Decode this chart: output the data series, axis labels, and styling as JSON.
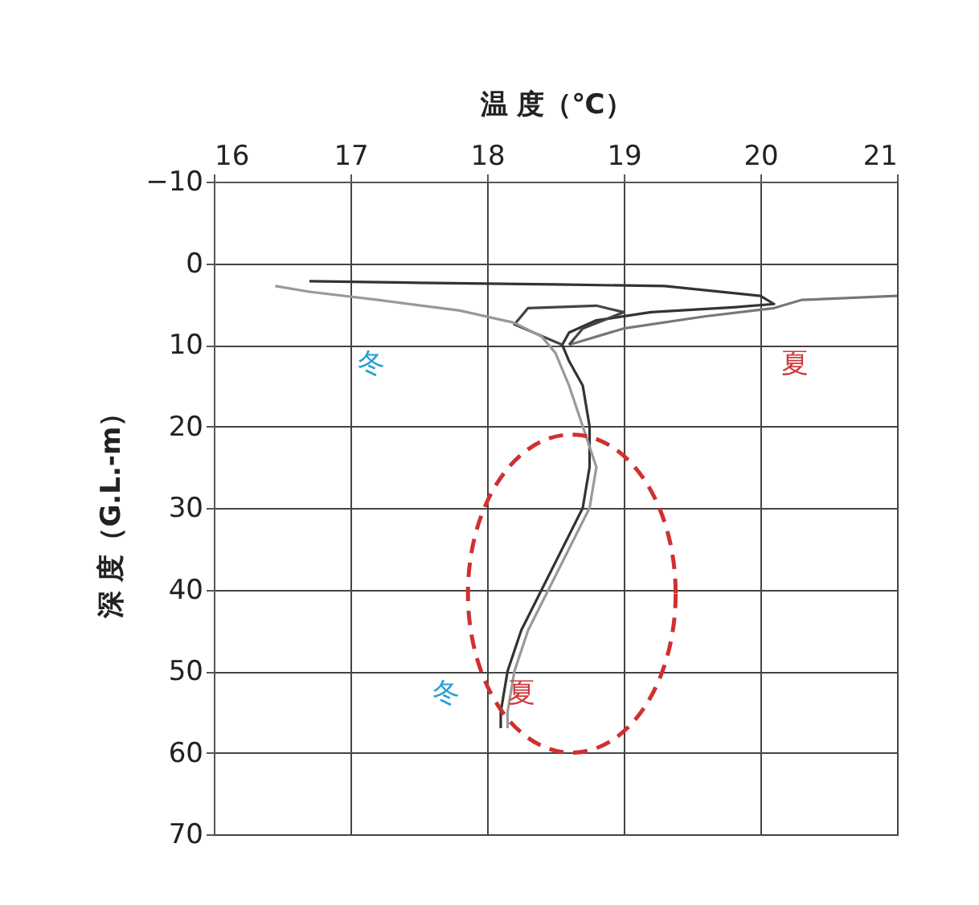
{
  "chart_data": {
    "type": "line",
    "xlabel": "温 度（℃）",
    "ylabel": "深 度（G.L.-m）",
    "xlim": [
      16,
      21
    ],
    "xticks": [
      16,
      17,
      18,
      19,
      20,
      21
    ],
    "ylim": [
      70,
      -10
    ],
    "yticks": [
      -10,
      0,
      10,
      20,
      30,
      40,
      50,
      60,
      70
    ],
    "grid": true,
    "marker": "none",
    "line_style": "solid",
    "series": [
      {
        "color": "#333333",
        "x": [
          16.7,
          17.5,
          18.5,
          19.3,
          20.0,
          20.1,
          19.8,
          19.2,
          18.8,
          18.6,
          18.55,
          18.6,
          18.7,
          18.75,
          18.75,
          18.7,
          18.55,
          18.4,
          18.25,
          18.15,
          18.1,
          18.1
        ],
        "values": [
          2.2,
          2.4,
          2.6,
          2.8,
          4.0,
          5.0,
          5.4,
          6.0,
          7.0,
          8.5,
          10,
          12,
          15,
          20,
          25,
          30,
          35,
          40,
          45,
          50,
          55,
          57
        ]
      },
      {
        "color": "#777777",
        "x": [
          18.6,
          19.0,
          19.6,
          20.1,
          20.3,
          21.0
        ],
        "values": [
          10,
          8,
          6.5,
          5.5,
          4.5,
          4
        ]
      },
      {
        "color": "#444444",
        "x": [
          18.55,
          18.2,
          18.3,
          18.8,
          19.0,
          18.7,
          18.6
        ],
        "values": [
          10,
          7.5,
          5.5,
          5.2,
          6,
          8,
          10
        ]
      },
      {
        "color": "#999999",
        "x": [
          16.45,
          16.7,
          17.2,
          17.8,
          18.2,
          18.4,
          18.5,
          18.6,
          18.7,
          18.8,
          18.75,
          18.6,
          18.45,
          18.3,
          18.2,
          18.15,
          18.15
        ],
        "values": [
          2.8,
          3.5,
          4.5,
          5.8,
          7.3,
          9,
          11,
          15,
          20,
          25,
          30,
          35,
          40,
          45,
          50,
          55,
          57
        ]
      }
    ],
    "annotations": [
      "冬",
      "夏",
      "冬",
      "夏"
    ]
  }
}
